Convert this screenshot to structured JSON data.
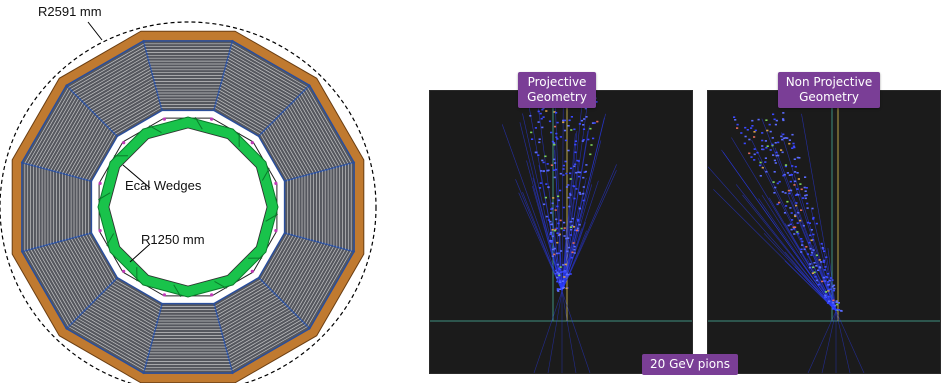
{
  "detector": {
    "outer_radius_label": "R2591 mm",
    "inner_radius_label": "R1250 mm",
    "ecal_label": "Ecal Wedges",
    "colors": {
      "frame": "#c07a30",
      "module": "#55575e",
      "lines": "#d8d8d8",
      "dividers": "#2b4f9c",
      "ecal": "#19c34b",
      "ecal_edge": "#0b7a2b"
    }
  },
  "panels": [
    {
      "label_line1": "Projective",
      "label_line2": "Geometry"
    },
    {
      "label_line1": "Non Projective",
      "label_line2": "Geometry"
    }
  ],
  "bottom_label": "20 GeV pions"
}
